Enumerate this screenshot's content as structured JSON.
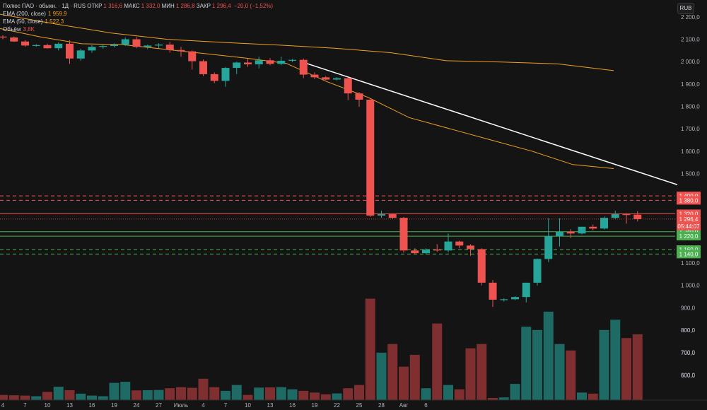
{
  "header": {
    "symbol": "Полюс ПАО · обыкн. · 1Д · RUS",
    "open_label": "ОТКР",
    "open_value": "1 316,6",
    "high_label": "МАКС",
    "high_value": "1 332,0",
    "low_label": "МИН",
    "low_value": "1 286,8",
    "close_label": "ЗАКР",
    "close_value": "1 296,4",
    "change_value": "−20,0 (−1,52%)"
  },
  "indicators": {
    "ema200_label": "EMA (200, close)",
    "ema200_value": "1 959,9",
    "ema50_label": "EMA (50, close)",
    "ema50_value": "1 522,3",
    "volume_label": "Объём",
    "volume_value": "3,8K"
  },
  "currency_button": "RUB",
  "colors": {
    "up": "#26a69a",
    "down": "#ef5350",
    "vol_up": "#1e6a65",
    "vol_down": "#7f2f2f",
    "ema": "#f0a020",
    "trendline": "#ffffff",
    "resistance": "#ef5350",
    "support": "#4caf50",
    "background": "#141414"
  },
  "chart_data": {
    "type": "candlestick",
    "y_axis": {
      "min": 500,
      "max": 2200,
      "ticks": [
        "2 200,0",
        "2 100,0",
        "2 000,0",
        "1 900,0",
        "1 800,0",
        "1 700,0",
        "1 600,0",
        "1 500,0",
        "1 100,0",
        "1 000,0",
        "900,0",
        "800,0",
        "700,0",
        "600,0"
      ],
      "tick_values": [
        2200,
        2100,
        2000,
        1900,
        1800,
        1700,
        1600,
        1500,
        1100,
        1000,
        900,
        800,
        700,
        600
      ]
    },
    "x_axis": {
      "ticks": [
        "4",
        "7",
        "10",
        "13",
        "16",
        "19",
        "24",
        "27",
        "Июль",
        "4",
        "7",
        "10",
        "13",
        "16",
        "19",
        "22",
        "25",
        "28",
        "Авг",
        "6"
      ],
      "tick_index": [
        0,
        2,
        4,
        6,
        8,
        10,
        12,
        14,
        16,
        18,
        20,
        22,
        24,
        26,
        28,
        30,
        32,
        34,
        36,
        38
      ]
    },
    "candles": [
      [
        2112,
        2118,
        2100,
        2108
      ],
      [
        2108,
        2112,
        2088,
        2090
      ],
      [
        2090,
        2096,
        2066,
        2072
      ],
      [
        2072,
        2078,
        2066,
        2074
      ],
      [
        2074,
        2080,
        2058,
        2060
      ],
      [
        2060,
        2086,
        2050,
        2080
      ],
      [
        2080,
        2096,
        1990,
        2014
      ],
      [
        2014,
        2058,
        2004,
        2050
      ],
      [
        2050,
        2074,
        2040,
        2066
      ],
      [
        2066,
        2074,
        2058,
        2070
      ],
      [
        2070,
        2082,
        2064,
        2076
      ],
      [
        2076,
        2108,
        2070,
        2100
      ],
      [
        2100,
        2110,
        2060,
        2066
      ],
      [
        2066,
        2076,
        2056,
        2072
      ],
      [
        2072,
        2082,
        2060,
        2076
      ],
      [
        2076,
        2088,
        2040,
        2052
      ],
      [
        2052,
        2066,
        2022,
        2046
      ],
      [
        2046,
        2050,
        1964,
        2002
      ],
      [
        2002,
        2010,
        1936,
        1944
      ],
      [
        1944,
        1952,
        1904,
        1914
      ],
      [
        1914,
        1976,
        1888,
        1972
      ],
      [
        1972,
        2000,
        1944,
        1996
      ],
      [
        1996,
        2012,
        1976,
        1988
      ],
      [
        1988,
        2022,
        1970,
        2006
      ],
      [
        2006,
        2016,
        1984,
        1990
      ],
      [
        1990,
        2022,
        1984,
        2004
      ],
      [
        2004,
        2012,
        1998,
        2008
      ],
      [
        2008,
        2014,
        1926,
        1942
      ],
      [
        1942,
        1952,
        1922,
        1930
      ],
      [
        1930,
        1936,
        1918,
        1920
      ],
      [
        1920,
        1930,
        1916,
        1926
      ],
      [
        1926,
        1930,
        1828,
        1858
      ],
      [
        1858,
        1864,
        1798,
        1830
      ],
      [
        1830,
        1832,
        1306,
        1312
      ],
      [
        1312,
        1334,
        1302,
        1318
      ],
      [
        1318,
        1322,
        1298,
        1302
      ],
      [
        1302,
        1306,
        1146,
        1156
      ],
      [
        1156,
        1166,
        1138,
        1144
      ],
      [
        1144,
        1166,
        1138,
        1160
      ],
      [
        1160,
        1184,
        1150,
        1156
      ],
      [
        1156,
        1232,
        1148,
        1196
      ],
      [
        1196,
        1200,
        1166,
        1178
      ],
      [
        1178,
        1184,
        1132,
        1162
      ],
      [
        1162,
        1166,
        1000,
        1012
      ],
      [
        1012,
        1024,
        904,
        936
      ],
      [
        936,
        942,
        928,
        938
      ],
      [
        938,
        952,
        934,
        948
      ],
      [
        948,
        1010,
        924,
        1012
      ],
      [
        1012,
        1120,
        1000,
        1118
      ],
      [
        1118,
        1300,
        1104,
        1220
      ],
      [
        1220,
        1300,
        1174,
        1240
      ],
      [
        1240,
        1252,
        1212,
        1232
      ],
      [
        1232,
        1262,
        1228,
        1262
      ],
      [
        1262,
        1272,
        1246,
        1254
      ],
      [
        1254,
        1308,
        1250,
        1302
      ],
      [
        1302,
        1334,
        1296,
        1318
      ],
      [
        1318,
        1322,
        1276,
        1316
      ],
      [
        1316,
        1332,
        1286,
        1296
      ]
    ],
    "volume": {
      "scale_max": 950,
      "values": [
        48,
        45,
        42,
        36,
        76,
        124,
        92,
        60,
        42,
        36,
        160,
        170,
        90,
        92,
        94,
        110,
        120,
        114,
        198,
        120,
        86,
        140,
        48,
        116,
        118,
        120,
        100,
        86,
        70,
        54,
        62,
        110,
        140,
        940,
        440,
        520,
        310,
        420,
        110,
        710,
        140,
        100,
        480,
        520,
        20,
        25,
        150,
        680,
        650,
        820,
        520,
        460,
        70,
        60,
        650,
        745,
        575,
        610
      ],
      "labels": [
        "800,0",
        "700,0",
        "600,0"
      ]
    },
    "ema200": [
      2212,
      2168,
      2128,
      2100,
      2086,
      2074,
      2060,
      2040,
      2004,
      1998,
      1990,
      1960
    ],
    "ema50": [
      2148,
      2110,
      2080,
      2076,
      2056,
      2036,
      2016,
      1992,
      1910,
      1840,
      1750,
      1700,
      1650,
      1600,
      1540,
      1522
    ],
    "trendline": [
      2002,
      1450
    ],
    "levels": [
      {
        "value": 1400,
        "label": "1 400,0",
        "kind": "resistance",
        "style": "dashed"
      },
      {
        "value": 1380,
        "label": "1 380,0",
        "kind": "resistance",
        "style": "dashed"
      },
      {
        "value": 1320,
        "label": "1 320,0",
        "kind": "resistance",
        "style": "solid"
      },
      {
        "value": 1240,
        "label": "1 240,0",
        "kind": "support",
        "style": "solid"
      },
      {
        "value": 1220,
        "label": "1 220,0",
        "kind": "support",
        "style": "solid"
      },
      {
        "value": 1160,
        "label": "1 160,0",
        "kind": "support",
        "style": "dashed"
      },
      {
        "value": 1140,
        "label": "1 140,0",
        "kind": "support",
        "style": "dashed"
      }
    ],
    "last_price": {
      "value": 1296.4,
      "label": "1 296,4",
      "timer": "05:44:07"
    }
  }
}
